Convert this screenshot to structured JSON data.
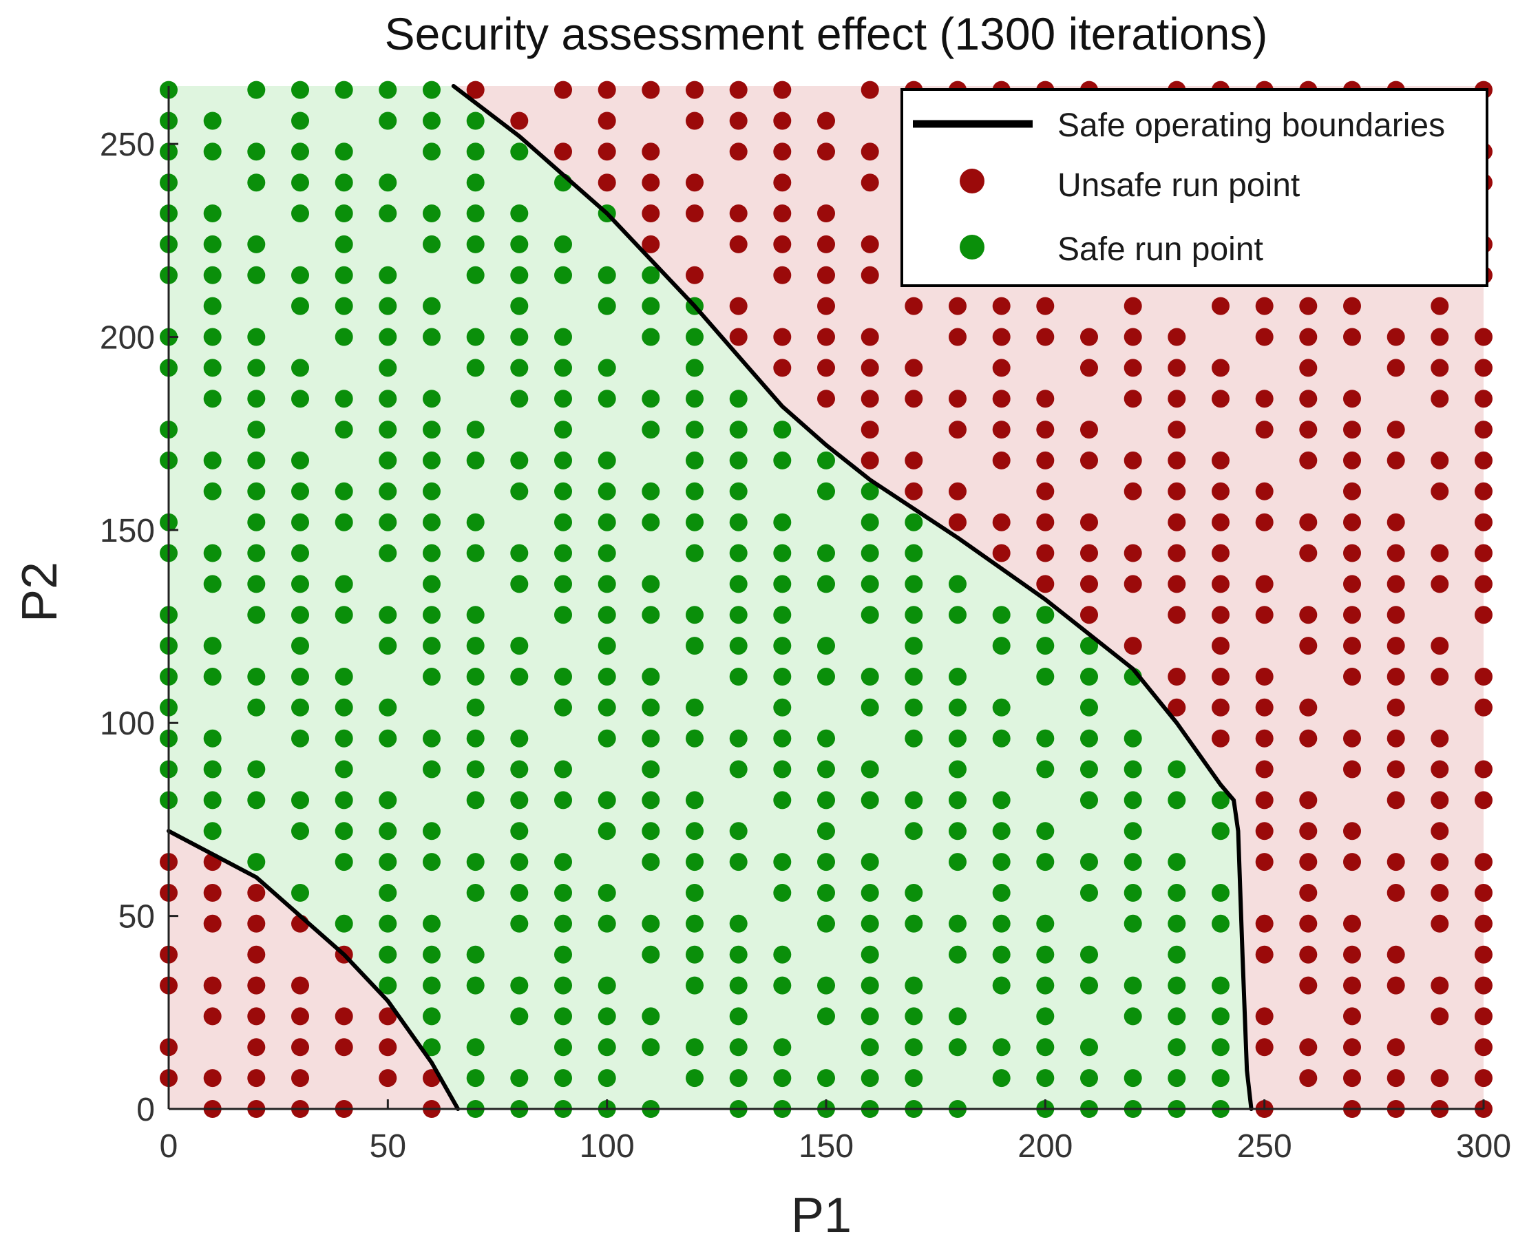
{
  "chart_data": {
    "type": "scatter",
    "title": "Security assessment effect (1300 iterations)",
    "xlabel": "P1",
    "ylabel": "P2",
    "xlim": [
      0,
      300
    ],
    "ylim": [
      0,
      265
    ],
    "xticks": [
      0,
      50,
      100,
      150,
      200,
      250,
      300
    ],
    "yticks": [
      0,
      50,
      100,
      150,
      200,
      250
    ],
    "grid": false,
    "legend_position": "top-right",
    "colors": {
      "safe_region": "#dff5df",
      "unsafe_region": "#f5dede",
      "safe_point": "#0a8f0a",
      "unsafe_point": "#9b0a0a",
      "boundary": "#000000"
    },
    "legend": [
      {
        "label": "Safe operating boundaries",
        "kind": "line"
      },
      {
        "label": "Unsafe run point",
        "kind": "unsafe"
      },
      {
        "label": "Safe run point",
        "kind": "safe"
      }
    ],
    "grid_points": {
      "x_start": 0,
      "x_end": 300,
      "x_step": 10,
      "y_start": 0,
      "y_end": 264,
      "y_step": 8
    },
    "series": [
      {
        "name": "Safe operating boundaries",
        "kind": "boundary",
        "segments": [
          [
            [
              65,
              265
            ],
            [
              80,
              252
            ],
            [
              100,
              232
            ],
            [
              120,
              208
            ],
            [
              140,
              182
            ],
            [
              150,
              172
            ],
            [
              160,
              163
            ],
            [
              180,
              148
            ],
            [
              200,
              132
            ],
            [
              220,
              114
            ],
            [
              230,
              100
            ],
            [
              240,
              84
            ],
            [
              243,
              80
            ],
            [
              244,
              72
            ],
            [
              245,
              40
            ],
            [
              246,
              10
            ],
            [
              247,
              0
            ]
          ],
          [
            [
              0,
              72
            ],
            [
              20,
              60
            ],
            [
              40,
              40
            ],
            [
              50,
              28
            ],
            [
              60,
              12
            ],
            [
              66,
              0
            ]
          ]
        ]
      },
      {
        "name": "Unsafe run point",
        "kind": "unsafe",
        "rule": "grid points outside the region bounded by the safe operating boundaries"
      },
      {
        "name": "Safe run point",
        "kind": "safe",
        "rule": "grid points inside the region bounded by the safe operating boundaries"
      }
    ]
  }
}
